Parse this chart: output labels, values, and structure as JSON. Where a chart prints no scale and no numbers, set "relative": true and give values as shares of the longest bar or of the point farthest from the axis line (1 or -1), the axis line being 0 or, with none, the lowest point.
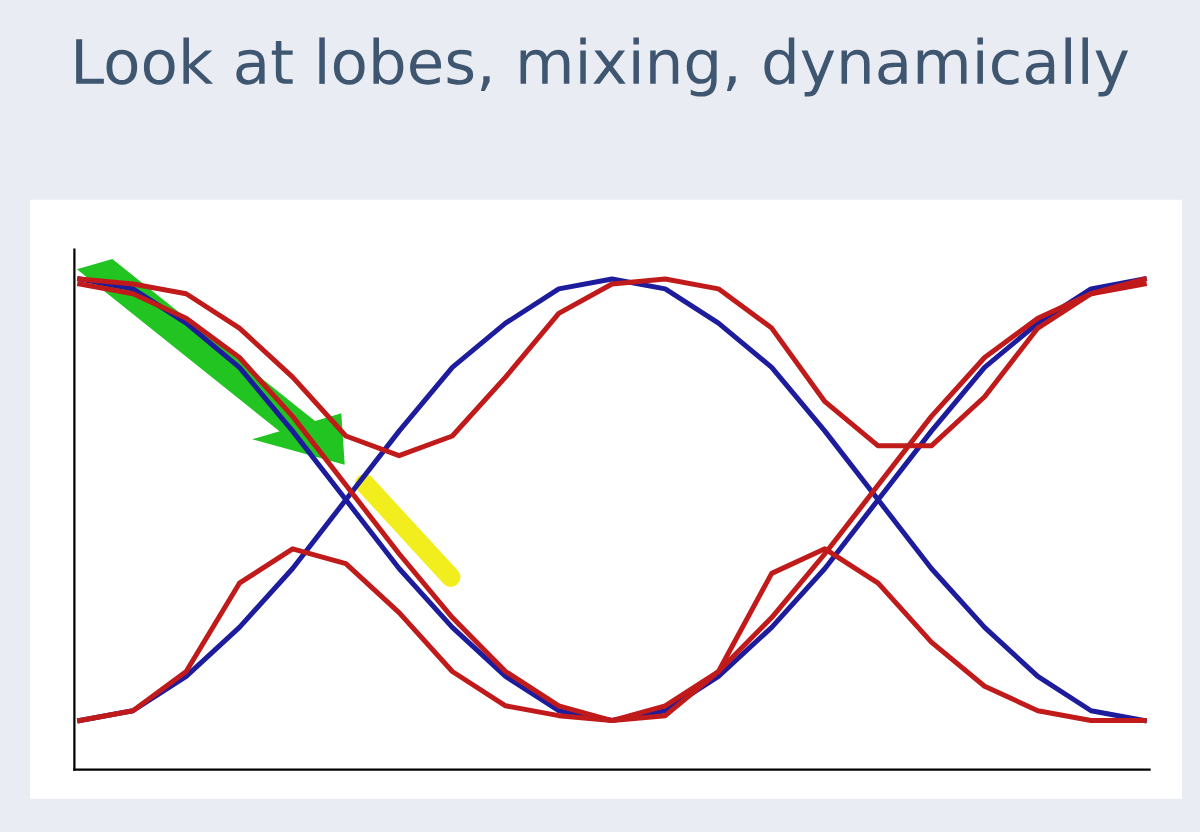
{
  "chart_data": {
    "type": "line",
    "title": "Look at lobes, mixing, dynamically",
    "relative": true,
    "categories": [
      null,
      null,
      null,
      null,
      null,
      null,
      null,
      null,
      null,
      null,
      null,
      null,
      null,
      null,
      null,
      null,
      null,
      null,
      null,
      null,
      null
    ],
    "series": [
      {
        "color": "#1c1c9c",
        "values": [
          1.0,
          0.98,
          0.91,
          0.82,
          0.69,
          0.55,
          0.41,
          0.29,
          0.19,
          0.12,
          0.1,
          0.12,
          0.19,
          0.29,
          0.41,
          0.55,
          0.69,
          0.82,
          0.91,
          0.98,
          1.0
        ]
      },
      {
        "color": "#1c1c9c",
        "values": [
          0.1,
          0.12,
          0.19,
          0.29,
          0.41,
          0.55,
          0.69,
          0.82,
          0.91,
          0.98,
          1.0,
          0.98,
          0.91,
          0.82,
          0.69,
          0.55,
          0.41,
          0.29,
          0.19,
          0.12,
          0.1
        ]
      },
      {
        "color": "#c01a1a",
        "values": [
          0.99,
          0.97,
          0.92,
          0.84,
          0.72,
          0.58,
          0.44,
          0.31,
          0.2,
          0.13,
          0.1,
          0.13,
          0.2,
          0.31,
          0.44,
          0.58,
          0.72,
          0.84,
          0.92,
          0.97,
          0.99
        ]
      },
      {
        "color": "#c01a1a",
        "values": [
          0.1,
          0.12,
          0.2,
          0.38,
          0.45,
          0.42,
          0.32,
          0.2,
          0.13,
          0.11,
          0.1,
          0.11,
          0.2,
          0.4,
          0.45,
          0.38,
          0.26,
          0.17,
          0.12,
          0.1,
          0.1
        ]
      },
      {
        "color": "#c01a1a",
        "values": [
          1.0,
          0.99,
          0.97,
          0.9,
          0.8,
          0.68,
          0.64,
          0.68,
          0.8,
          0.93,
          0.99,
          1.0,
          0.98,
          0.9,
          0.75,
          0.66,
          0.66,
          0.76,
          0.9,
          0.97,
          1.0
        ]
      }
    ]
  }
}
